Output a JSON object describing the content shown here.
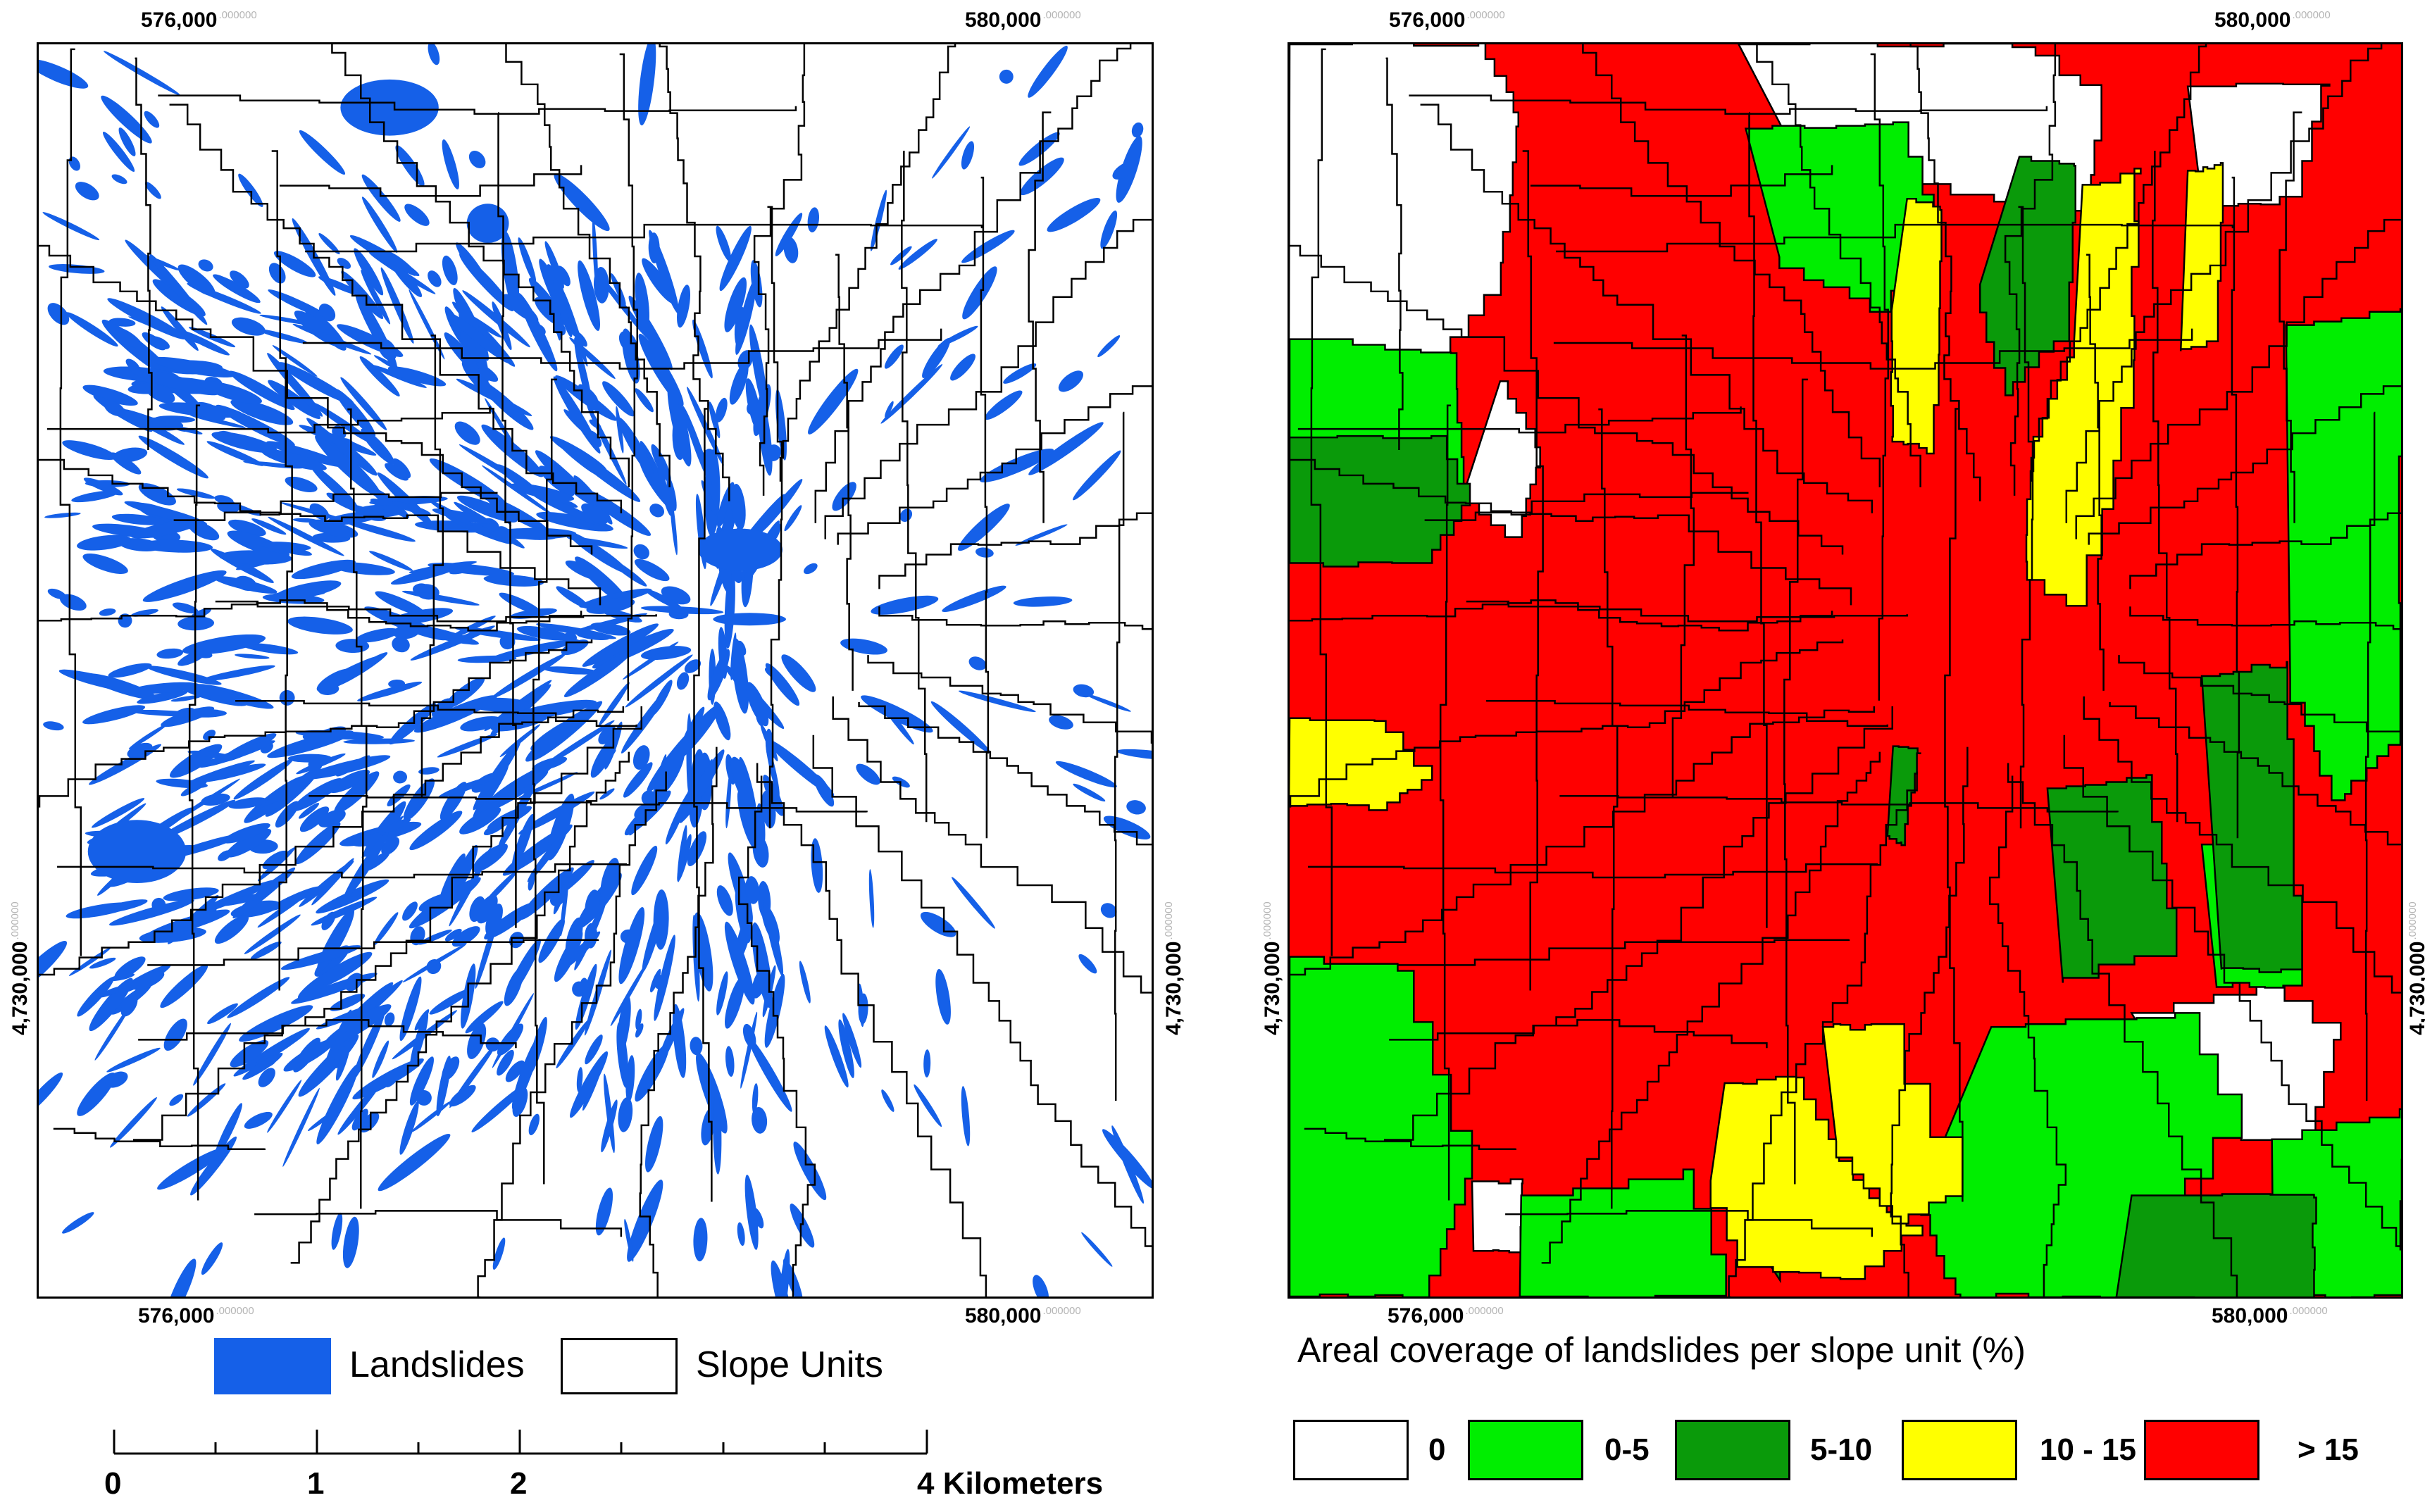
{
  "left_map": {
    "x_ticks_top": [
      {
        "label": "576,000",
        "sup": ".000000"
      },
      {
        "label": "580,000",
        "sup": ".000000"
      }
    ],
    "x_ticks_bottom": [
      {
        "label": "576,000",
        "sup": ".000000"
      },
      {
        "label": "580,000",
        "sup": ".000000"
      }
    ],
    "y_tick_left": {
      "label": "4,730,000",
      "sup": ".000000"
    },
    "y_tick_right": {
      "label": "4,730,000",
      "sup": ".000000"
    },
    "legend": [
      {
        "label": "Landslides",
        "color": "#1560e8"
      },
      {
        "label": "Slope Units",
        "color": "#ffffff"
      }
    ],
    "scale_bar": {
      "labels": [
        "0",
        "1",
        "2",
        "4 Kilometers"
      ]
    }
  },
  "right_map": {
    "x_ticks_top": [
      {
        "label": "576,000",
        "sup": ".000000"
      },
      {
        "label": "580,000",
        "sup": ".000000"
      }
    ],
    "x_ticks_bottom": [
      {
        "label": "576,000",
        "sup": ".000000"
      },
      {
        "label": "580,000",
        "sup": ".000000"
      }
    ],
    "y_tick_left": {
      "label": "4,730,000",
      "sup": ".000000"
    },
    "y_tick_right": {
      "label": "4,730,000",
      "sup": ".000000"
    },
    "legend_title": "Areal coverage of landslides per slope unit (%)",
    "legend": [
      {
        "label": "0",
        "color": "#ffffff"
      },
      {
        "label": "0-5",
        "color": "#00ee00"
      },
      {
        "label": "5-10",
        "color": "#0a9a0a"
      },
      {
        "label": "10 - 15",
        "color": "#ffff00"
      },
      {
        "label": "> 15",
        "color": "#ff0000"
      }
    ]
  },
  "colors": {
    "landslide": "#1560e8",
    "outline": "#000000",
    "class_0": "#ffffff",
    "class_0_5": "#00ee00",
    "class_5_10": "#0a9a0a",
    "class_10_15": "#ffff00",
    "class_gt15": "#ff0000"
  }
}
